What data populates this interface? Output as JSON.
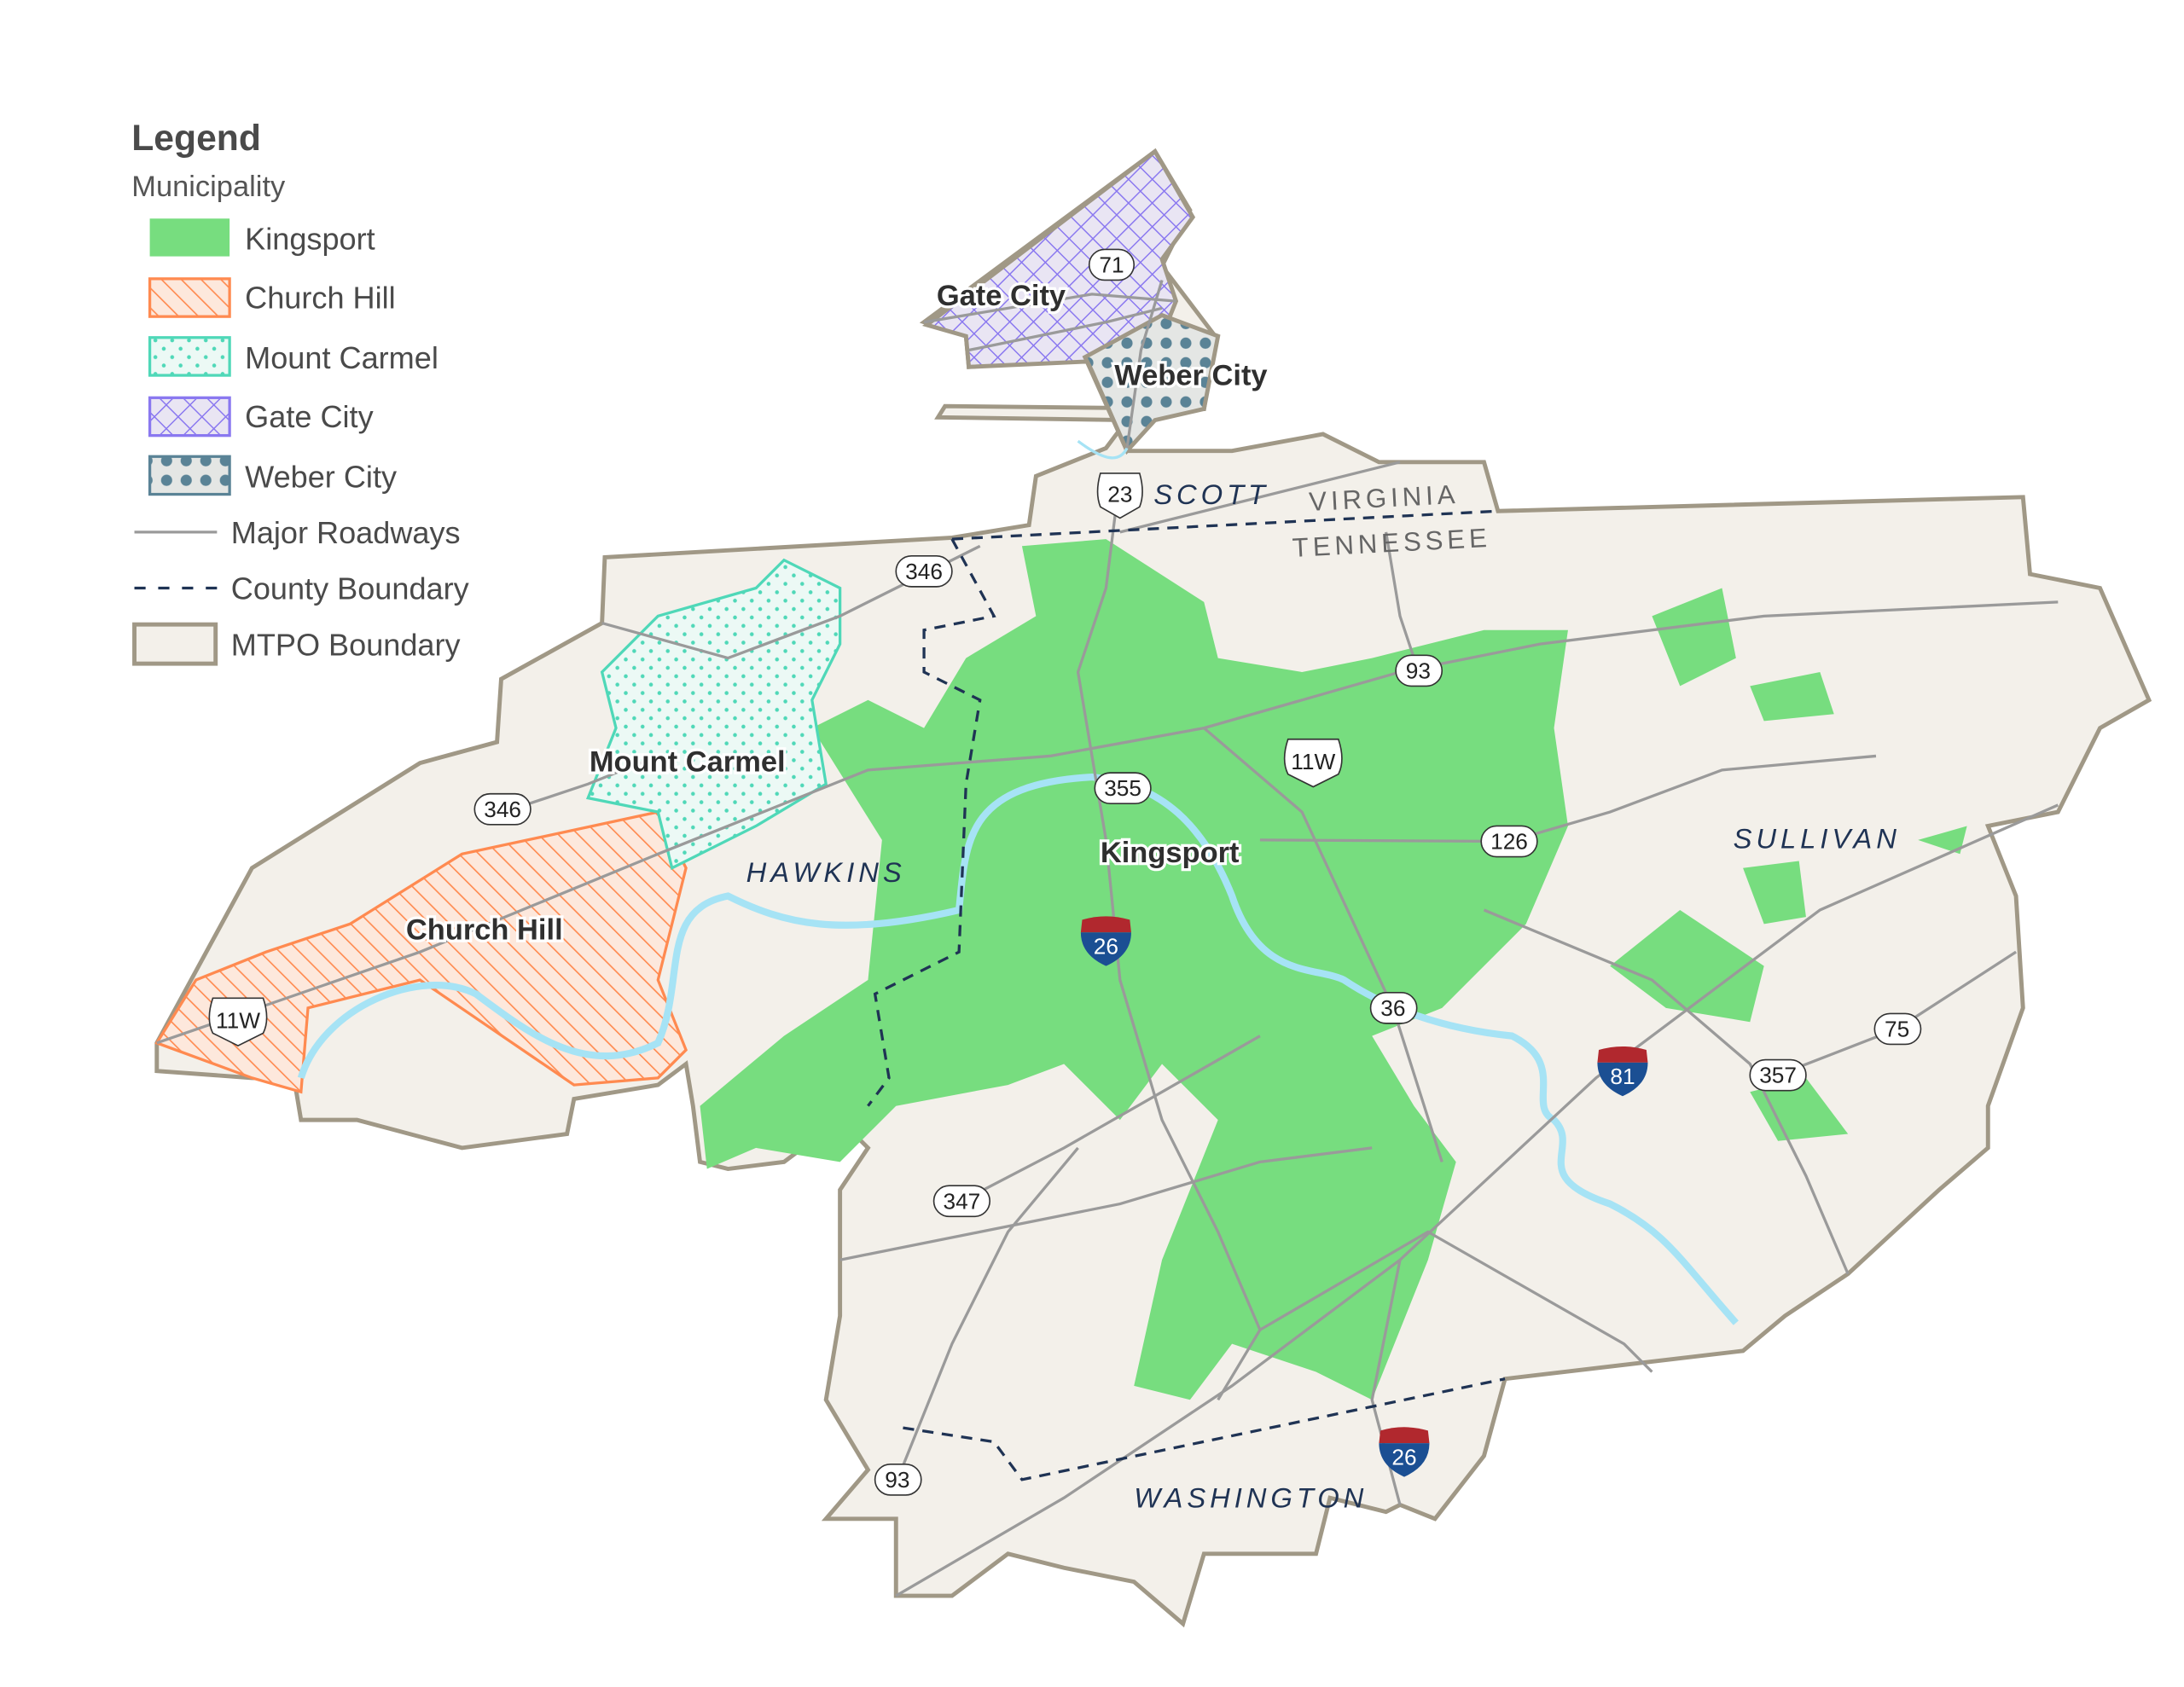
{
  "colors": {
    "kingsport": "#77dd7f",
    "church_hill": "#ff8a50",
    "mount_carmel": "#4fd8b8",
    "gate_city": "#8a78f0",
    "weber_city": "#5a8396",
    "mtpo_fill": "#f3f0ea",
    "mtpo_stroke": "#a09886",
    "roads": "#9a9a9a",
    "county_boundary": "#1f3354",
    "water": "#a6e3f5"
  },
  "legend": {
    "title": "Legend",
    "subtitle": "Municipality",
    "items": [
      {
        "label": "Kingsport",
        "symbol": "solid-green"
      },
      {
        "label": "Church Hill",
        "symbol": "orange-diagonal-hatch"
      },
      {
        "label": "Mount Carmel",
        "symbol": "teal-dots"
      },
      {
        "label": "Gate City",
        "symbol": "purple-crosshatch"
      },
      {
        "label": "Weber City",
        "symbol": "blue-gray-dots"
      },
      {
        "label": "Major Roadways",
        "symbol": "gray-line"
      },
      {
        "label": "County Boundary",
        "symbol": "dashed-navy-line"
      },
      {
        "label": "MTPO Boundary",
        "symbol": "beige-box"
      }
    ]
  },
  "map": {
    "cities": [
      "Gate City",
      "Weber City",
      "Mount Carmel",
      "Kingsport",
      "Church Hill"
    ],
    "counties": [
      "SCOTT",
      "HAWKINS",
      "SULLIVAN",
      "WASHINGTON"
    ],
    "states": [
      "VIRGINIA",
      "TENNESSEE"
    ],
    "state_routes": [
      "71",
      "346",
      "346",
      "93",
      "355",
      "126",
      "36",
      "347",
      "357",
      "75",
      "93"
    ],
    "us_routes": [
      "23",
      "11W",
      "11W"
    ],
    "interstates": [
      "26",
      "26",
      "81"
    ]
  }
}
